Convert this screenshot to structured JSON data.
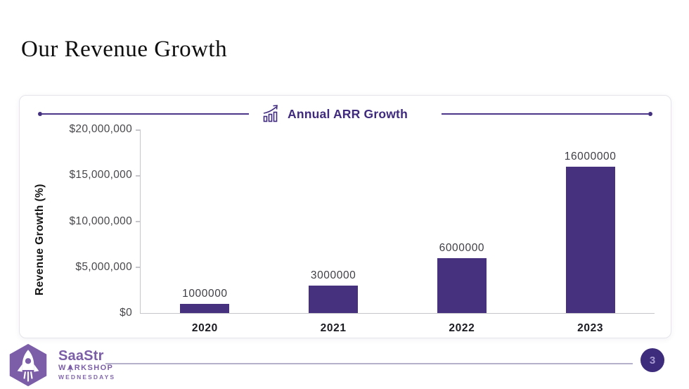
{
  "slide": {
    "title": "Our Revenue Growth",
    "page_number": "3"
  },
  "chart_card": {
    "header_icon": "bar-chart-growth-icon"
  },
  "chart_data": {
    "type": "bar",
    "title": "Annual ARR Growth",
    "categories": [
      "2020",
      "2021",
      "2022",
      "2023"
    ],
    "values": [
      1000000,
      3000000,
      6000000,
      16000000
    ],
    "bar_labels": [
      "1000000",
      "3000000",
      "6000000",
      "16000000"
    ],
    "xlabel": "",
    "ylabel": "Revenue Growth (%)",
    "ylim": [
      0,
      20000000
    ],
    "yticks": [
      0,
      5000000,
      10000000,
      15000000,
      20000000
    ],
    "ytick_labels": [
      "$0",
      "$5,000,000",
      "$10,000,000",
      "$15,000,000",
      "$20,000,000"
    ],
    "grid": false,
    "legend": "none",
    "bar_color": "#46317E",
    "label_position": "above-bars"
  },
  "footer": {
    "logo": {
      "brand": "SaaStr",
      "workshop_prefix": "W",
      "workshop_suffix": "RKSHOP",
      "wednesdays": "WEDNESDAYS",
      "badge_icon": "rocket-hexagon-icon"
    }
  },
  "colors": {
    "bar_purple": "#46317E",
    "header_text_purple": "#3F2A7E",
    "brand_purple": "#7B5EA7",
    "page_circle_purple": "#3D2C7C",
    "axis_gray": "#C6C6CA",
    "footer_line": "#B6B1CB"
  }
}
